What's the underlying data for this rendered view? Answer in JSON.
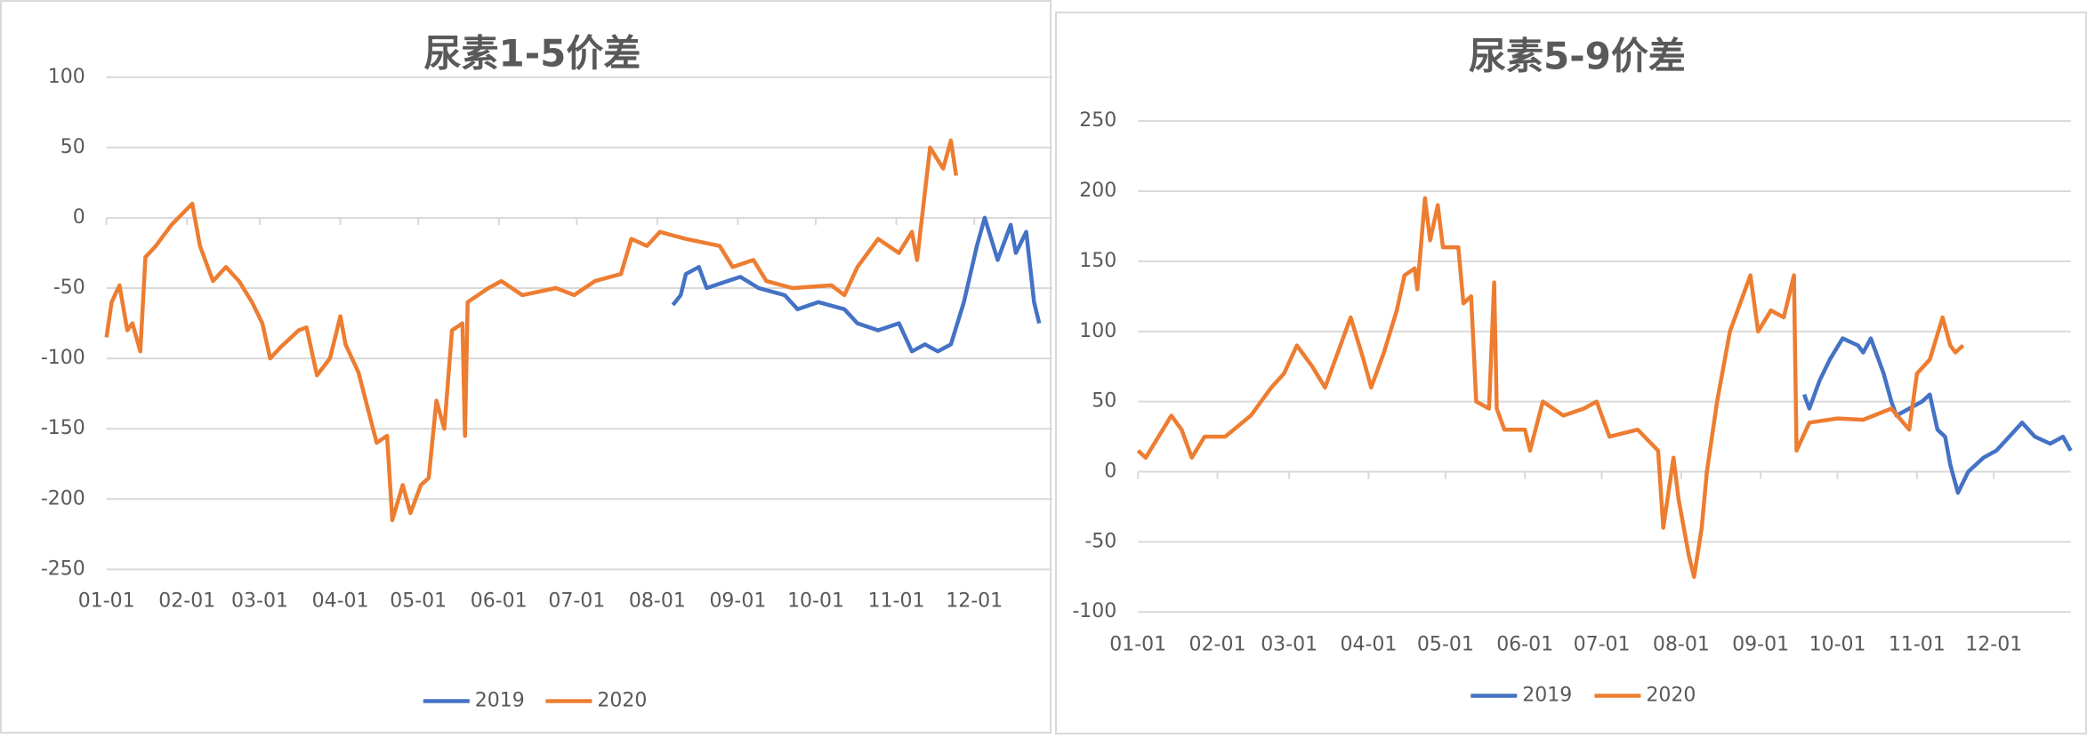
{
  "chart_data": [
    {
      "type": "line",
      "title": "尿素1-5价差",
      "legend": "bottom",
      "grid": true,
      "xlim": [
        "01-01",
        "12-31"
      ],
      "xticks": [
        "01-01",
        "02-01",
        "03-01",
        "04-01",
        "05-01",
        "06-01",
        "07-01",
        "08-01",
        "09-01",
        "10-01",
        "11-01",
        "12-01"
      ],
      "ylim": [
        -250,
        100
      ],
      "yticks": [
        100,
        50,
        0,
        -50,
        -100,
        -150,
        -200,
        -250
      ],
      "series": [
        {
          "name": "2019",
          "color": "#4472c4",
          "x": [
            "08-07",
            "08-10",
            "08-12",
            "08-17",
            "08-20",
            "08-28",
            "09-02",
            "09-09",
            "09-19",
            "09-24",
            "10-02",
            "10-12",
            "10-17",
            "10-25",
            "11-02",
            "11-07",
            "11-12",
            "11-17",
            "11-22",
            "11-27",
            "12-02",
            "12-05",
            "12-10",
            "12-15",
            "12-17",
            "12-21",
            "12-24",
            "12-26"
          ],
          "values": [
            -62,
            -55,
            -40,
            -35,
            -50,
            -45,
            -42,
            -50,
            -55,
            -65,
            -60,
            -65,
            -75,
            -80,
            -75,
            -95,
            -90,
            -95,
            -90,
            -60,
            -20,
            0,
            -30,
            -5,
            -25,
            -10,
            -60,
            -75
          ]
        },
        {
          "name": "2020",
          "color": "#ed7d31",
          "x": [
            "01-01",
            "01-03",
            "01-06",
            "01-09",
            "01-11",
            "01-14",
            "01-16",
            "01-20",
            "01-26",
            "02-03",
            "02-06",
            "02-11",
            "02-16",
            "02-21",
            "02-26",
            "03-02",
            "03-05",
            "03-09",
            "03-16",
            "03-19",
            "03-23",
            "03-28",
            "04-01",
            "04-03",
            "04-08",
            "04-15",
            "04-19",
            "04-21",
            "04-25",
            "04-28",
            "05-02",
            "05-05",
            "05-08",
            "05-11",
            "05-14",
            "05-18",
            "05-19",
            "05-20",
            "05-28",
            "06-02",
            "06-10",
            "06-23",
            "06-30",
            "07-08",
            "07-18",
            "07-22",
            "07-28",
            "08-02",
            "08-12",
            "08-25",
            "08-30",
            "09-07",
            "09-12",
            "09-22",
            "10-07",
            "10-12",
            "10-17",
            "10-25",
            "11-02",
            "11-07",
            "11-09",
            "11-14",
            "11-19",
            "11-22",
            "11-24"
          ],
          "values": [
            -85,
            -60,
            -48,
            -80,
            -75,
            -95,
            -28,
            -20,
            -5,
            10,
            -20,
            -45,
            -35,
            -45,
            -60,
            -75,
            -100,
            -92,
            -80,
            -78,
            -112,
            -100,
            -70,
            -90,
            -110,
            -160,
            -155,
            -215,
            -190,
            -210,
            -190,
            -185,
            -130,
            -150,
            -80,
            -75,
            -155,
            -60,
            -50,
            -45,
            -55,
            -50,
            -55,
            -45,
            -40,
            -15,
            -20,
            -10,
            -15,
            -20,
            -35,
            -30,
            -45,
            -50,
            -48,
            -55,
            -35,
            -15,
            -25,
            -10,
            -30,
            50,
            35,
            55,
            30
          ]
        }
      ]
    },
    {
      "type": "line",
      "title": "尿素5-9价差",
      "legend": "bottom",
      "grid": true,
      "xlim": [
        "01-01",
        "12-31"
      ],
      "xticks": [
        "01-01",
        "02-01",
        "03-01",
        "04-01",
        "05-01",
        "06-01",
        "07-01",
        "08-01",
        "09-01",
        "10-01",
        "11-01",
        "12-01"
      ],
      "ylim": [
        -100,
        250
      ],
      "yticks": [
        250,
        200,
        150,
        100,
        50,
        0,
        -50,
        -100
      ],
      "series": [
        {
          "name": "2019",
          "color": "#4472c4",
          "x": [
            "09-18",
            "09-20",
            "09-24",
            "09-28",
            "10-03",
            "10-09",
            "10-11",
            "10-14",
            "10-19",
            "10-22",
            "10-24",
            "10-29",
            "11-03",
            "11-06",
            "11-09",
            "11-12",
            "11-14",
            "11-17",
            "11-21",
            "11-27",
            "12-02",
            "12-07",
            "12-12",
            "12-17",
            "12-23",
            "12-28",
            "12-31"
          ],
          "values": [
            55,
            45,
            65,
            80,
            95,
            90,
            85,
            95,
            70,
            50,
            40,
            45,
            50,
            55,
            30,
            25,
            5,
            -15,
            0,
            10,
            15,
            25,
            35,
            25,
            20,
            25,
            15
          ]
        },
        {
          "name": "2020",
          "color": "#ed7d31",
          "x": [
            "01-01",
            "01-04",
            "01-09",
            "01-14",
            "01-18",
            "01-22",
            "01-27",
            "02-04",
            "02-14",
            "02-22",
            "02-27",
            "03-04",
            "03-10",
            "03-15",
            "03-23",
            "03-25",
            "03-30",
            "04-02",
            "04-07",
            "04-12",
            "04-15",
            "04-19",
            "04-20",
            "04-23",
            "04-25",
            "04-28",
            "04-30",
            "05-06",
            "05-08",
            "05-11",
            "05-13",
            "05-18",
            "05-20",
            "05-21",
            "05-24",
            "06-01",
            "06-03",
            "06-08",
            "06-16",
            "06-24",
            "06-29",
            "07-04",
            "07-15",
            "07-23",
            "07-25",
            "07-29",
            "07-31",
            "08-04",
            "08-06",
            "08-09",
            "08-11",
            "08-15",
            "08-20",
            "08-28",
            "08-31",
            "09-05",
            "09-10",
            "09-14",
            "09-15",
            "09-20",
            "10-01",
            "10-11",
            "10-22",
            "10-29",
            "11-01",
            "11-06",
            "11-11",
            "11-14",
            "11-16",
            "11-19"
          ],
          "values": [
            15,
            10,
            25,
            40,
            30,
            10,
            25,
            25,
            40,
            60,
            70,
            90,
            75,
            60,
            100,
            110,
            80,
            60,
            85,
            115,
            140,
            145,
            130,
            195,
            165,
            190,
            160,
            160,
            120,
            125,
            50,
            45,
            135,
            45,
            30,
            30,
            15,
            50,
            40,
            45,
            50,
            25,
            30,
            15,
            -40,
            10,
            -20,
            -60,
            -75,
            -40,
            0,
            50,
            100,
            140,
            100,
            115,
            110,
            140,
            15,
            35,
            38,
            37,
            45,
            30,
            70,
            80,
            110,
            90,
            85,
            90
          ]
        }
      ]
    }
  ]
}
